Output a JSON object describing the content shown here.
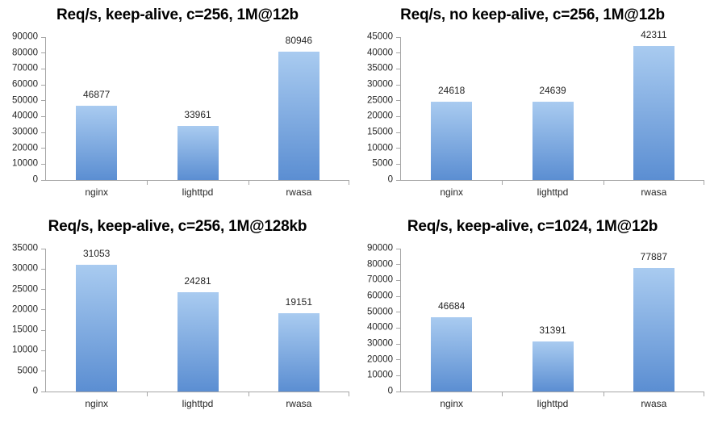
{
  "style": {
    "bar_gradient_top": "#a9cbf0",
    "bar_gradient_bottom": "#5b8ed2",
    "axis_line_color": "#a6a6a6",
    "label_color": "#262626",
    "title_color": "#000000",
    "background": "#ffffff"
  },
  "chart_data": [
    {
      "type": "bar",
      "title": "Req/s, keep-alive, c=256, 1M@12b",
      "categories": [
        "nginx",
        "lighttpd",
        "rwasa"
      ],
      "values": [
        46877,
        33961,
        80946
      ],
      "data_labels": [
        "46877",
        "33961",
        "80946"
      ],
      "ylim": [
        0,
        90000
      ],
      "yticks": [
        0,
        10000,
        20000,
        30000,
        40000,
        50000,
        60000,
        70000,
        80000,
        90000
      ],
      "xlabel": "",
      "ylabel": "",
      "grid": false,
      "legend": "none"
    },
    {
      "type": "bar",
      "title": "Req/s, no keep-alive, c=256, 1M@12b",
      "categories": [
        "nginx",
        "lighttpd",
        "rwasa"
      ],
      "values": [
        24618,
        24639,
        42311
      ],
      "data_labels": [
        "24618",
        "24639",
        "42311"
      ],
      "ylim": [
        0,
        45000
      ],
      "yticks": [
        0,
        5000,
        10000,
        15000,
        20000,
        25000,
        30000,
        35000,
        40000,
        45000
      ],
      "xlabel": "",
      "ylabel": "",
      "grid": false,
      "legend": "none"
    },
    {
      "type": "bar",
      "title": "Req/s, keep-alive, c=256, 1M@128kb",
      "categories": [
        "nginx",
        "lighttpd",
        "rwasa"
      ],
      "values": [
        31053,
        24281,
        19151
      ],
      "data_labels": [
        "31053",
        "24281",
        "19151"
      ],
      "ylim": [
        0,
        35000
      ],
      "yticks": [
        0,
        5000,
        10000,
        15000,
        20000,
        25000,
        30000,
        35000
      ],
      "xlabel": "",
      "ylabel": "",
      "grid": false,
      "legend": "none"
    },
    {
      "type": "bar",
      "title": "Req/s, keep-alive, c=1024, 1M@12b",
      "categories": [
        "nginx",
        "lighttpd",
        "rwasa"
      ],
      "values": [
        46684,
        31391,
        77887
      ],
      "data_labels": [
        "46684",
        "31391",
        "77887"
      ],
      "ylim": [
        0,
        90000
      ],
      "yticks": [
        0,
        10000,
        20000,
        30000,
        40000,
        50000,
        60000,
        70000,
        80000,
        90000
      ],
      "xlabel": "",
      "ylabel": "",
      "grid": false,
      "legend": "none"
    }
  ]
}
